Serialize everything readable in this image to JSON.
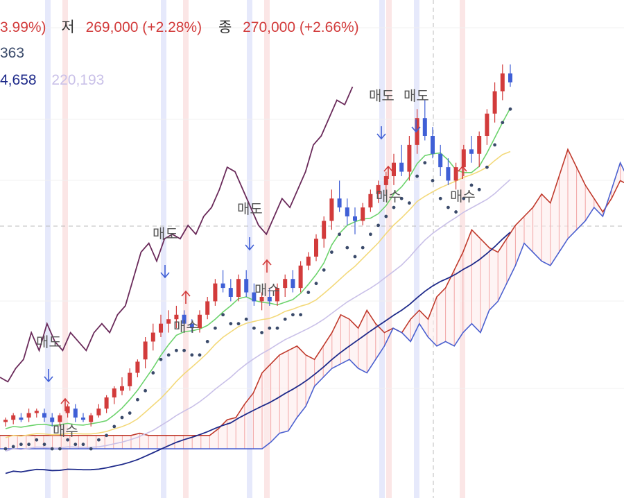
{
  "header": {
    "row1": [
      {
        "text": "3.99%)",
        "color": "#d23b3b"
      },
      {
        "text": "저",
        "color": "#333333"
      },
      {
        "text": "269,000 (+2.28%)",
        "color": "#d23b3b"
      },
      {
        "text": "종",
        "color": "#333333"
      },
      {
        "text": "270,000 (+2.66%)",
        "color": "#d23b3b"
      }
    ],
    "row2": [
      {
        "text": "363",
        "color": "#3a4a6a"
      }
    ],
    "row3": [
      {
        "text": "4,658",
        "color": "#1e2a8a"
      },
      {
        "text": "220,193",
        "color": "#c9c0e8"
      }
    ]
  },
  "signals": [
    {
      "label": "매도",
      "kind": "sell"
    },
    {
      "label": "매수",
      "kind": "buy"
    },
    {
      "label": "매도",
      "kind": "sell"
    },
    {
      "label": "매수",
      "kind": "buy"
    },
    {
      "label": "매도",
      "kind": "sell"
    },
    {
      "label": "매수",
      "kind": "buy"
    },
    {
      "label": "매도",
      "kind": "sell"
    },
    {
      "label": "매수",
      "kind": "buy"
    },
    {
      "label": "매도",
      "kind": "sell"
    },
    {
      "label": "매수",
      "kind": "buy"
    }
  ],
  "colors": {
    "up": "#d23b3b",
    "down": "#3f5fd6",
    "price_line": "#6a2a5a",
    "tenkan": "#6cd36c",
    "kijun": "#f3d97a",
    "ma_long": "#1e2a8a",
    "ma_light": "#c9c0e8",
    "cloud_red": "#c0392b",
    "cloud_blue": "#4a60d0",
    "psar": "#3a4a6a",
    "sell_band": "#e6e9fb",
    "buy_band": "#fbe6e6"
  },
  "chart_data": {
    "type": "candlestick",
    "y_axis": "price",
    "candles_ohlc": [
      [
        0.58,
        0.59,
        0.57,
        0.585
      ],
      [
        0.585,
        0.6,
        0.575,
        0.595
      ],
      [
        0.59,
        0.6,
        0.58,
        0.585
      ],
      [
        0.59,
        0.61,
        0.58,
        0.6
      ],
      [
        0.6,
        0.61,
        0.59,
        0.605
      ],
      [
        0.6,
        0.61,
        0.58,
        0.59
      ],
      [
        0.59,
        0.6,
        0.57,
        0.58
      ],
      [
        0.58,
        0.6,
        0.57,
        0.595
      ],
      [
        0.6,
        0.62,
        0.59,
        0.615
      ],
      [
        0.61,
        0.62,
        0.58,
        0.59
      ],
      [
        0.59,
        0.6,
        0.58,
        0.585
      ],
      [
        0.58,
        0.6,
        0.57,
        0.595
      ],
      [
        0.595,
        0.62,
        0.59,
        0.61
      ],
      [
        0.61,
        0.64,
        0.6,
        0.635
      ],
      [
        0.635,
        0.66,
        0.62,
        0.655
      ],
      [
        0.65,
        0.68,
        0.64,
        0.66
      ],
      [
        0.66,
        0.7,
        0.65,
        0.69
      ],
      [
        0.69,
        0.72,
        0.68,
        0.715
      ],
      [
        0.72,
        0.77,
        0.7,
        0.76
      ],
      [
        0.76,
        0.8,
        0.74,
        0.78
      ],
      [
        0.78,
        0.82,
        0.77,
        0.8
      ],
      [
        0.8,
        0.83,
        0.78,
        0.81
      ],
      [
        0.81,
        0.84,
        0.79,
        0.82
      ],
      [
        0.82,
        0.83,
        0.79,
        0.8
      ],
      [
        0.8,
        0.81,
        0.78,
        0.79
      ],
      [
        0.79,
        0.83,
        0.78,
        0.82
      ],
      [
        0.82,
        0.86,
        0.81,
        0.85
      ],
      [
        0.85,
        0.9,
        0.84,
        0.89
      ],
      [
        0.89,
        0.92,
        0.87,
        0.88
      ],
      [
        0.88,
        0.9,
        0.85,
        0.86
      ],
      [
        0.86,
        0.91,
        0.85,
        0.9
      ],
      [
        0.9,
        0.92,
        0.86,
        0.87
      ],
      [
        0.87,
        0.89,
        0.84,
        0.85
      ],
      [
        0.85,
        0.87,
        0.83,
        0.86
      ],
      [
        0.86,
        0.88,
        0.84,
        0.85
      ],
      [
        0.85,
        0.89,
        0.84,
        0.88
      ],
      [
        0.88,
        0.91,
        0.86,
        0.9
      ],
      [
        0.9,
        0.92,
        0.87,
        0.88
      ],
      [
        0.88,
        0.94,
        0.87,
        0.93
      ],
      [
        0.93,
        0.96,
        0.92,
        0.95
      ],
      [
        0.95,
        1.0,
        0.94,
        0.99
      ],
      [
        0.99,
        1.04,
        0.97,
        1.03
      ],
      [
        1.03,
        1.1,
        1.01,
        1.08
      ],
      [
        1.08,
        1.12,
        1.05,
        1.06
      ],
      [
        1.06,
        1.08,
        1.02,
        1.04
      ],
      [
        1.04,
        1.06,
        1.0,
        1.03
      ],
      [
        1.03,
        1.07,
        1.02,
        1.06
      ],
      [
        1.06,
        1.1,
        1.05,
        1.09
      ],
      [
        1.09,
        1.12,
        1.07,
        1.11
      ],
      [
        1.11,
        1.14,
        1.09,
        1.13
      ],
      [
        1.13,
        1.18,
        1.11,
        1.16
      ],
      [
        1.16,
        1.2,
        1.13,
        1.14
      ],
      [
        1.14,
        1.22,
        1.12,
        1.2
      ],
      [
        1.2,
        1.28,
        1.18,
        1.26
      ],
      [
        1.26,
        1.3,
        1.21,
        1.22
      ],
      [
        1.22,
        1.24,
        1.17,
        1.18
      ],
      [
        1.18,
        1.2,
        1.13,
        1.15
      ],
      [
        1.15,
        1.17,
        1.11,
        1.12
      ],
      [
        1.12,
        1.16,
        1.1,
        1.15
      ],
      [
        1.15,
        1.2,
        1.13,
        1.19
      ],
      [
        1.19,
        1.22,
        1.16,
        1.18
      ],
      [
        1.18,
        1.23,
        1.15,
        1.22
      ],
      [
        1.22,
        1.28,
        1.2,
        1.27
      ],
      [
        1.27,
        1.34,
        1.25,
        1.32
      ],
      [
        1.32,
        1.38,
        1.3,
        1.36
      ],
      [
        1.36,
        1.38,
        1.33,
        1.34
      ]
    ],
    "price_line": [
      0.68,
      0.67,
      0.7,
      0.72,
      0.78,
      0.74,
      0.8,
      0.76,
      0.74,
      0.78,
      0.76,
      0.74,
      0.78,
      0.8,
      0.78,
      0.82,
      0.84,
      0.9,
      0.96,
      0.98,
      0.94,
      0.99,
      1.0,
      0.99,
      1.02,
      1.0,
      1.04,
      1.06,
      1.1,
      1.15,
      1.14,
      1.1,
      1.06,
      1.02,
      1.0,
      1.04,
      1.08,
      1.06,
      1.1,
      1.14,
      1.2,
      1.22,
      1.26,
      1.3,
      1.29,
      1.33
    ],
    "note": "Ichimoku-style chart with moving averages, parabolic SAR and buy/sell signals"
  }
}
